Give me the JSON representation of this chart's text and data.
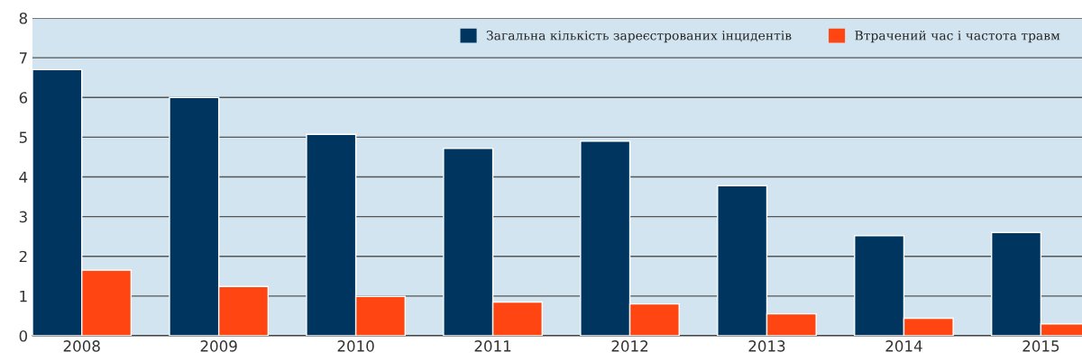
{
  "chart_data": {
    "type": "bar",
    "categories": [
      "2008",
      "2009",
      "2010",
      "2011",
      "2012",
      "2013",
      "2014",
      "2015"
    ],
    "series": [
      {
        "name": "Загальна кількість зареєстрованих інцидентів",
        "color": "#003560",
        "values": [
          6.7,
          6.0,
          5.07,
          4.72,
          4.9,
          3.78,
          2.52,
          2.6
        ]
      },
      {
        "name": "Втрачений час і частота травм",
        "color": "#ff4511",
        "values": [
          1.65,
          1.24,
          0.99,
          0.85,
          0.8,
          0.55,
          0.44,
          0.3
        ]
      }
    ],
    "ylim": [
      0,
      8
    ],
    "yticks": [
      0,
      1,
      2,
      3,
      4,
      5,
      6,
      7,
      8
    ],
    "grid": "y",
    "legend": "top right"
  }
}
